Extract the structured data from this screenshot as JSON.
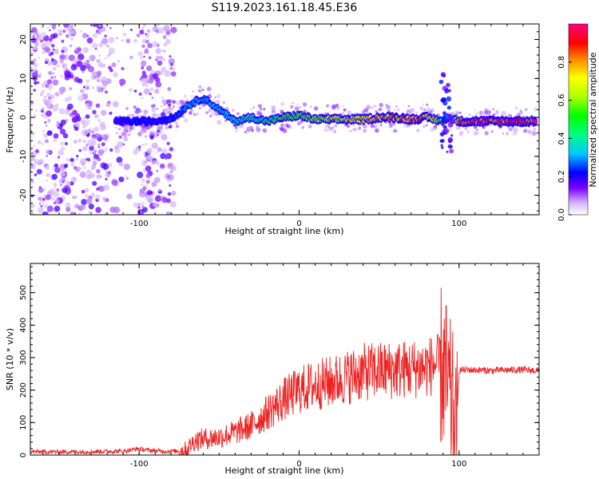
{
  "title": "S119.2023.161.18.45.E36",
  "colors": {
    "snr_line": "#ee2222",
    "axis": "#000000",
    "background": "#ffffff"
  },
  "chart_data": [
    {
      "type": "heatmap",
      "xlabel": "Height of straight line (km)",
      "ylabel": "Frequency (Hz)",
      "xlim": [
        -168,
        150
      ],
      "ylim": [
        -25,
        24
      ],
      "xticks": [
        -100,
        0,
        100
      ],
      "yticks": [
        20,
        10,
        0,
        -10,
        -20
      ],
      "grid": false,
      "colorbar": {
        "label": "Normalized spectral amplitude",
        "range": [
          0,
          1
        ],
        "ticks": [
          0.0,
          0.2,
          0.4,
          0.6,
          0.8
        ],
        "colormap": "white-purple-blue-cyan-green-yellow-orange-red-pink"
      },
      "ridge": {
        "x": [
          -115,
          -100,
          -90,
          -78,
          -70,
          -60,
          -50,
          -40,
          -30,
          -20,
          -10,
          0,
          10,
          20,
          30,
          40,
          50,
          60,
          70,
          80,
          90,
          93,
          100,
          110,
          120,
          130,
          140,
          148
        ],
        "y": [
          -1,
          -1,
          -1,
          0,
          3,
          5,
          2,
          -1,
          0,
          -1,
          0,
          0.5,
          -0.5,
          -0.5,
          -0.5,
          -0.5,
          0,
          0,
          -0.5,
          0,
          -1,
          0,
          -1,
          -1,
          -1,
          -1,
          -1,
          -1
        ],
        "amplitude": [
          0.2,
          0.25,
          0.2,
          0.25,
          0.35,
          0.35,
          0.35,
          0.4,
          0.45,
          0.5,
          0.55,
          0.6,
          0.65,
          0.7,
          0.75,
          0.8,
          0.85,
          0.85,
          0.9,
          0.9,
          0.5,
          0.3,
          0.9,
          0.95,
          0.95,
          1.0,
          1.0,
          1.0
        ]
      },
      "noise_region_x": [
        -168,
        -78
      ]
    },
    {
      "type": "line",
      "xlabel": "Height of straight line (km)",
      "ylabel": "SNR (10 * v/v)",
      "xlim": [
        -168,
        150
      ],
      "ylim": [
        0,
        590
      ],
      "xticks": [
        -100,
        0,
        100
      ],
      "yticks": [
        0,
        100,
        200,
        300,
        400,
        500
      ],
      "grid": false,
      "series": [
        {
          "x": [
            -168,
            -140,
            -110,
            -100,
            -95,
            -85,
            -75,
            -70,
            -65,
            -60,
            -50,
            -40,
            -30,
            -20,
            -10,
            0,
            10,
            20,
            30,
            40,
            50,
            60,
            70,
            80,
            85,
            90,
            93,
            95,
            97,
            98,
            100,
            110,
            120,
            130,
            140,
            150
          ],
          "y": [
            10,
            10,
            12,
            20,
            15,
            12,
            12,
            20,
            45,
            50,
            55,
            70,
            90,
            130,
            170,
            200,
            215,
            225,
            240,
            255,
            260,
            262,
            265,
            270,
            280,
            270,
            200,
            150,
            100,
            20,
            262,
            262,
            260,
            262,
            262,
            260
          ]
        }
      ]
    }
  ]
}
